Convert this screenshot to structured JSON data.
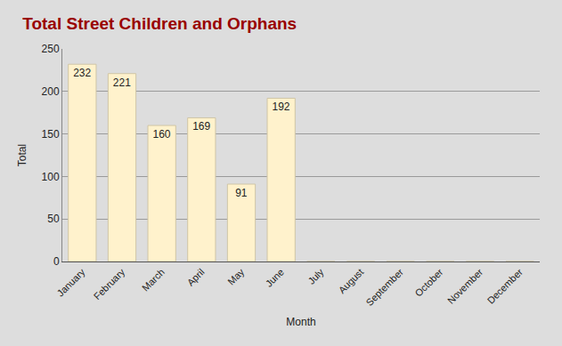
{
  "chart_data": {
    "type": "bar",
    "title": "Total Street Children and Orphans",
    "x_label": "Month",
    "y_label": "Total",
    "categories": [
      "January",
      "February",
      "March",
      "April",
      "May",
      "June",
      "July",
      "August",
      "September",
      "October",
      "November",
      "December"
    ],
    "values": [
      232,
      221,
      160,
      169,
      91,
      192,
      0,
      0,
      0,
      0,
      0,
      0
    ],
    "color": "#fff2cc",
    "ylim": [
      0,
      250
    ],
    "yticks": [
      0,
      50,
      100,
      150,
      200,
      250
    ],
    "grid": true,
    "data_labels": true
  }
}
